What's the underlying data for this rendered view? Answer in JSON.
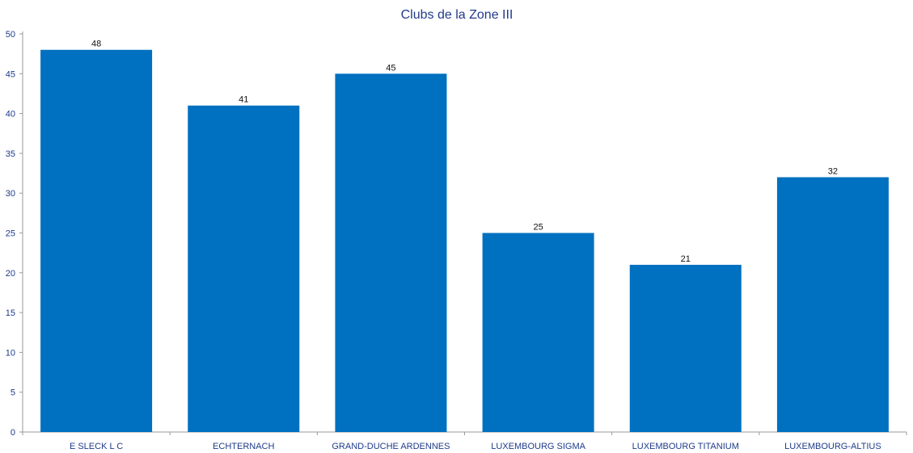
{
  "chart_data": {
    "type": "bar",
    "title": "Clubs de la Zone III",
    "xlabel": "",
    "ylabel": "",
    "categories": [
      "E SLECK L C",
      "ECHTERNACH",
      "GRAND-DUCHE ARDENNES",
      "LUXEMBOURG SIGMA",
      "LUXEMBOURG TITANIUM",
      "LUXEMBOURG-ALTIUS"
    ],
    "values": [
      48,
      41,
      45,
      25,
      21,
      32
    ],
    "ylim": [
      0,
      50
    ],
    "yticks": [
      0,
      5,
      10,
      15,
      20,
      25,
      30,
      35,
      40,
      45,
      50
    ],
    "grid": false,
    "legend": "none",
    "data_labels": true,
    "colors": {
      "bar": "#0070c0",
      "axis": "#9a9a9a",
      "text": "#1f3a8a"
    }
  }
}
